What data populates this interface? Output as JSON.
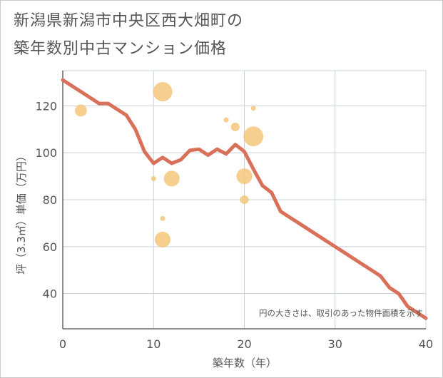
{
  "chart_data": {
    "type": "scatter",
    "title_lines": [
      "新潟県新潟市中央区西大畑町の",
      "築年数別中古マンション価格"
    ],
    "xlabel": "築年数（年）",
    "ylabel": "坪（3.3㎡）単価（万円）",
    "note": "円の大きさは、取引のあった物件面積を示す",
    "xlim": [
      0,
      40
    ],
    "ylim": [
      25,
      135
    ],
    "x_ticks": [
      0,
      10,
      20,
      30,
      40
    ],
    "y_ticks": [
      40,
      60,
      80,
      100,
      120
    ],
    "x_tick_labels": [
      "0",
      "10",
      "20",
      "30",
      "40"
    ],
    "y_tick_labels": [
      "40",
      "60",
      "80",
      "100",
      "120"
    ],
    "grid": true,
    "colors": {
      "trend": "#d9705a",
      "bubble": "#f5c67a",
      "grid": "#c8d3dc",
      "axis": "#666666",
      "text": "#555555"
    },
    "scatter_series": {
      "points": [
        {
          "x": 2,
          "y": 118,
          "area": 3.5
        },
        {
          "x": 10,
          "y": 89,
          "area": 0.6
        },
        {
          "x": 11,
          "y": 126,
          "area": 9
        },
        {
          "x": 11,
          "y": 72,
          "area": 0.6
        },
        {
          "x": 11,
          "y": 63,
          "area": 6
        },
        {
          "x": 12,
          "y": 89,
          "area": 6
        },
        {
          "x": 18,
          "y": 114,
          "area": 0.6
        },
        {
          "x": 19,
          "y": 111,
          "area": 1.8
        },
        {
          "x": 20,
          "y": 90,
          "area": 6
        },
        {
          "x": 20,
          "y": 80,
          "area": 1.8
        },
        {
          "x": 21,
          "y": 119,
          "area": 0.6
        },
        {
          "x": 21,
          "y": 107,
          "area": 9.5
        }
      ]
    },
    "trend_series": {
      "x": [
        0,
        1,
        2,
        3,
        4,
        5,
        6,
        7,
        8,
        9,
        10,
        11,
        12,
        13,
        14,
        15,
        16,
        17,
        18,
        19,
        20,
        21,
        22,
        23,
        24,
        25,
        26,
        27,
        28,
        29,
        30,
        31,
        32,
        33,
        34,
        35,
        36,
        37,
        38,
        39,
        40
      ],
      "y": [
        131,
        128.5,
        126,
        123.5,
        121,
        121,
        118.5,
        116,
        110,
        100.5,
        95.5,
        98,
        95.5,
        97,
        101,
        101.5,
        99,
        101.5,
        99.5,
        103.5,
        100.5,
        93,
        86,
        83,
        75,
        72.5,
        70,
        67.5,
        65,
        62.5,
        60,
        57.5,
        55,
        52.5,
        50,
        47.5,
        42.5,
        40,
        34.5,
        32,
        29.5
      ]
    }
  }
}
